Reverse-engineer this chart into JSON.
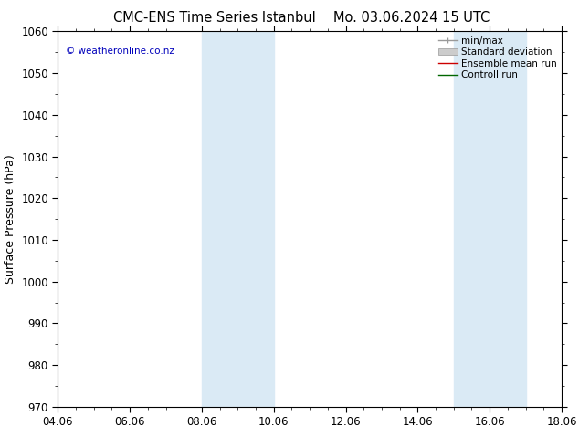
{
  "title_left": "CMC-ENS Time Series Istanbul",
  "title_right": "Mo. 03.06.2024 15 UTC",
  "ylabel": "Surface Pressure (hPa)",
  "ylim": [
    970,
    1060
  ],
  "yticks": [
    970,
    980,
    990,
    1000,
    1010,
    1020,
    1030,
    1040,
    1050,
    1060
  ],
  "xlim": [
    0,
    14
  ],
  "xtick_positions": [
    0,
    2,
    4,
    6,
    8,
    10,
    12,
    14
  ],
  "xtick_labels": [
    "04.06",
    "06.06",
    "08.06",
    "10.06",
    "12.06",
    "14.06",
    "16.06",
    "18.06"
  ],
  "shade_bands": [
    {
      "xmin": 4.0,
      "xmax": 6.0
    },
    {
      "xmin": 11.0,
      "xmax": 13.0
    }
  ],
  "shade_color": "#daeaf5",
  "background_color": "#ffffff",
  "legend_items": [
    {
      "label": "min/max",
      "color": "#999999",
      "lw": 1.0
    },
    {
      "label": "Standard deviation",
      "color": "#bbbbbb",
      "lw": 5
    },
    {
      "label": "Ensemble mean run",
      "color": "#cc0000",
      "lw": 1.0
    },
    {
      "label": "Controll run",
      "color": "#006600",
      "lw": 1.0
    }
  ],
  "watermark": "© weatheronline.co.nz",
  "watermark_color": "#0000bb",
  "title_fontsize": 10.5,
  "ylabel_fontsize": 9,
  "tick_fontsize": 8.5,
  "legend_fontsize": 7.5
}
